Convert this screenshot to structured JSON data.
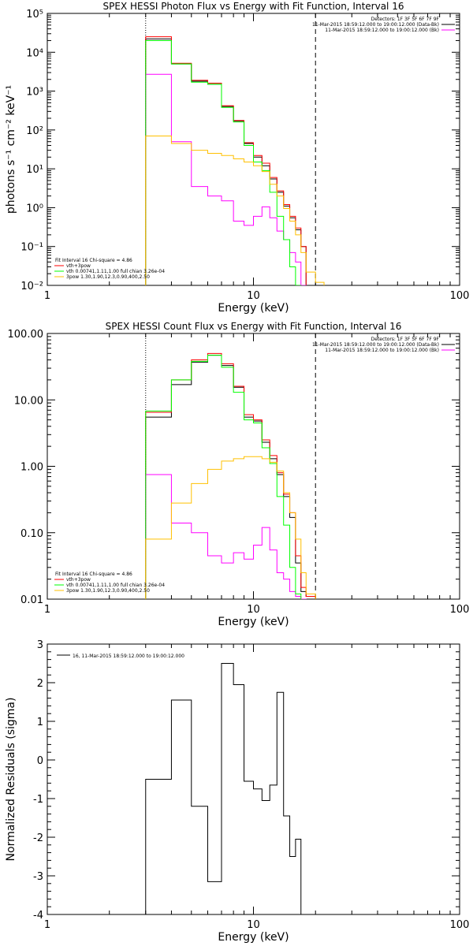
{
  "chart_data": [
    {
      "type": "line",
      "title": "SPEX HESSI Photon Flux vs Energy with Fit Function, Interval 16",
      "xlabel": "Energy (keV)",
      "ylabel": "photons s⁻¹ cm⁻² keV⁻¹",
      "xscale": "log",
      "yscale": "log",
      "xlim": [
        1,
        100
      ],
      "ylim": [
        0.01,
        100000
      ],
      "x_ticks": [
        "1",
        "10",
        "100"
      ],
      "y_ticks": [
        "10⁻²",
        "10⁻¹",
        "10⁰",
        "10¹",
        "10²",
        "10³",
        "10⁴",
        "10⁵"
      ],
      "y_tick_values": [
        0.01,
        0.1,
        1,
        10,
        100,
        1000,
        10000,
        100000
      ],
      "bin_edges": [
        3,
        4,
        5,
        6,
        7,
        8,
        9,
        10,
        11,
        12,
        13,
        14,
        15,
        16,
        17,
        18,
        20,
        22,
        24
      ],
      "series": [
        {
          "name": "",
          "color": "#000000",
          "values": [
            22000,
            5000,
            1800,
            1500,
            400,
            170,
            45,
            20,
            12,
            5.5,
            2.5,
            1.1,
            0.55,
            0.27,
            0.1
          ]
        },
        {
          "name": "",
          "color": "#ff0000",
          "values": [
            25000,
            5200,
            1900,
            1600,
            420,
            175,
            47,
            22,
            14,
            6,
            2.7,
            1.2,
            0.6,
            0.3,
            0.1
          ]
        },
        {
          "name": "",
          "color": "#ff00ff",
          "values": [
            2700,
            50,
            3.5,
            2,
            1.5,
            0.45,
            0.35,
            0.6,
            1.05,
            0.55,
            0.25,
            0.15,
            0.07,
            0.04,
            0.01
          ]
        },
        {
          "name": "",
          "color": "#00ff00",
          "values": [
            20000,
            5000,
            1700,
            1500,
            380,
            160,
            40,
            15,
            9,
            2.5,
            0.6,
            0.15,
            0.03,
            0.01,
            0.005
          ]
        },
        {
          "name": "",
          "color": "#ffc000",
          "values": [
            70,
            45,
            30,
            25,
            22,
            18,
            15,
            12,
            8.5,
            4,
            2,
            0.95,
            0.45,
            0.2,
            0.07,
            0.022,
            0.012,
            0.008
          ]
        }
      ],
      "markers": {
        "dotted": 3,
        "dashed": 20
      },
      "header": [
        "Detectors: 1F 3F 5F 6F 7F 9F",
        "11-Mar-2015 18:59:12.000 to 19:00:12.000 (Data-Bk)",
        "11-Mar-2015 18:59:12.000 to 19:00:12.000 (Bk)"
      ],
      "legend": [
        "Fit Interval 16   Chi-square = 4.86",
        "vth+3pow",
        "vth 0.00741,1.11,1.00  full chian 3.26e-04",
        "3pow 1.30,1.90,12.3,0.90,400,2.50"
      ]
    },
    {
      "type": "line",
      "title": "SPEX HESSI Count Flux vs Energy with Fit Function, Interval 16",
      "xlabel": "Energy (keV)",
      "ylabel": "",
      "xscale": "log",
      "yscale": "log",
      "xlim": [
        1,
        100
      ],
      "ylim": [
        0.01,
        100
      ],
      "x_ticks": [
        "1",
        "10",
        "100"
      ],
      "y_ticks": [
        "0.01",
        "0.10",
        "1.00",
        "10.00",
        "100.00"
      ],
      "y_tick_values": [
        0.01,
        0.1,
        1,
        10,
        100
      ],
      "bin_edges": [
        3,
        4,
        5,
        6,
        7,
        8,
        9,
        10,
        11,
        12,
        13,
        14,
        15,
        16,
        17,
        18,
        20
      ],
      "series": [
        {
          "name": "",
          "color": "#000000",
          "values": [
            5.5,
            17,
            37,
            47,
            33,
            15.5,
            5.5,
            4.8,
            2.3,
            1.3,
            0.75,
            0.35,
            0.17,
            0.035,
            0.013,
            0.011
          ]
        },
        {
          "name": "",
          "color": "#ff0000",
          "values": [
            6.5,
            20,
            40,
            50,
            35,
            16,
            6,
            5,
            2.5,
            1.45,
            0.8,
            0.38,
            0.2,
            0.045,
            0.015,
            0.011
          ]
        },
        {
          "name": "",
          "color": "#ff00ff",
          "values": [
            0.75,
            0.14,
            0.1,
            0.045,
            0.035,
            0.05,
            0.04,
            0.065,
            0.12,
            0.055,
            0.025,
            0.02,
            0.013,
            0.011,
            0.01
          ]
        },
        {
          "name": "",
          "color": "#00ff00",
          "values": [
            6.8,
            20,
            38,
            47,
            31,
            13,
            5,
            4.5,
            1.9,
            1.1,
            0.35,
            0.13,
            0.03,
            0.012,
            0.008
          ]
        },
        {
          "name": "",
          "color": "#ffc000",
          "values": [
            0.08,
            0.28,
            0.55,
            0.9,
            1.2,
            1.3,
            1.4,
            1.4,
            1.3,
            1.15,
            0.85,
            0.4,
            0.2,
            0.08,
            0.025,
            0.012
          ]
        }
      ],
      "markers": {
        "dotted": 3,
        "dashed": 20
      },
      "header": [
        "Detectors: 1F 3F 5F 6F 7F 9F",
        "11-Mar-2015 18:59:12.000 to 19:00:12.000 (Data-Bk)",
        "11-Mar-2015 18:59:12.000 to 19:00:12.000 (Bk)"
      ],
      "legend": [
        "Fit Interval 16   Chi-square = 4.86",
        "vth+3pow",
        "vth 0.00741,1.11,1.00  full chian 3.26e-04",
        "3pow 1.30,1.90,12.3,0.90,400,2.50"
      ]
    },
    {
      "type": "line",
      "title": "",
      "xlabel": "Energy (keV)",
      "ylabel": "Normalized Residuals (sigma)",
      "xscale": "log",
      "yscale": "linear",
      "xlim": [
        1,
        100
      ],
      "ylim": [
        -4,
        3
      ],
      "x_ticks": [
        "1",
        "10",
        "100"
      ],
      "y_ticks": [
        "-4",
        "-3",
        "-2",
        "-1",
        "0",
        "1",
        "2",
        "3"
      ],
      "y_tick_values": [
        -4,
        -3,
        -2,
        -1,
        0,
        1,
        2,
        3
      ],
      "bin_edges": [
        3,
        4,
        5,
        6,
        7,
        8,
        9,
        10,
        11,
        12,
        13,
        14,
        15,
        16,
        17,
        18,
        20
      ],
      "series": [
        {
          "name": "16, 11-Mar-2015 18:59:12.000 to 19:00:12.000",
          "color": "#000000",
          "values": [
            -0.5,
            1.55,
            -1.2,
            -3.15,
            2.5,
            1.95,
            -0.55,
            -0.75,
            -1.05,
            -0.65,
            1.75,
            -1.45,
            -2.5,
            -2.05,
            -4.1
          ]
        }
      ]
    }
  ]
}
